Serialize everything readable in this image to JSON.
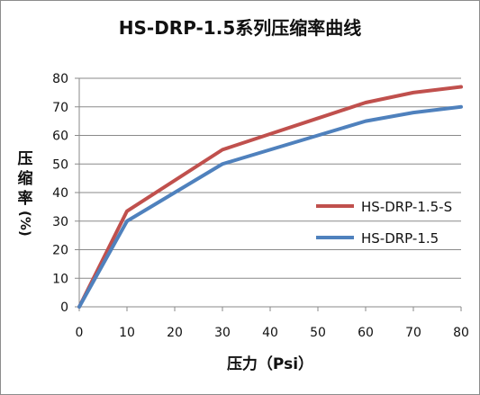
{
  "chart_data": {
    "type": "line",
    "title": "HS-DRP-1.5系列压缩率曲线",
    "xlabel": "压力（Psi）",
    "ylabel_main": "压缩率",
    "ylabel_unit": "(%)",
    "x": [
      0,
      10,
      30,
      40,
      50,
      60,
      70,
      80
    ],
    "xlim": [
      0,
      80
    ],
    "ylim": [
      0,
      80
    ],
    "xticks": [
      0,
      10,
      20,
      30,
      40,
      50,
      60,
      70,
      80
    ],
    "yticks": [
      0,
      10,
      20,
      30,
      40,
      50,
      60,
      70,
      80
    ],
    "grid": true,
    "legend_position": "right",
    "series": [
      {
        "name": "HS-DRP-1.5-S",
        "color": "#c0504d",
        "values": [
          0,
          33.5,
          55,
          60.5,
          66,
          71.5,
          75,
          77
        ]
      },
      {
        "name": "HS-DRP-1.5",
        "color": "#4f81bd",
        "values": [
          0,
          30,
          50,
          55,
          60,
          65,
          68,
          70
        ]
      }
    ]
  }
}
